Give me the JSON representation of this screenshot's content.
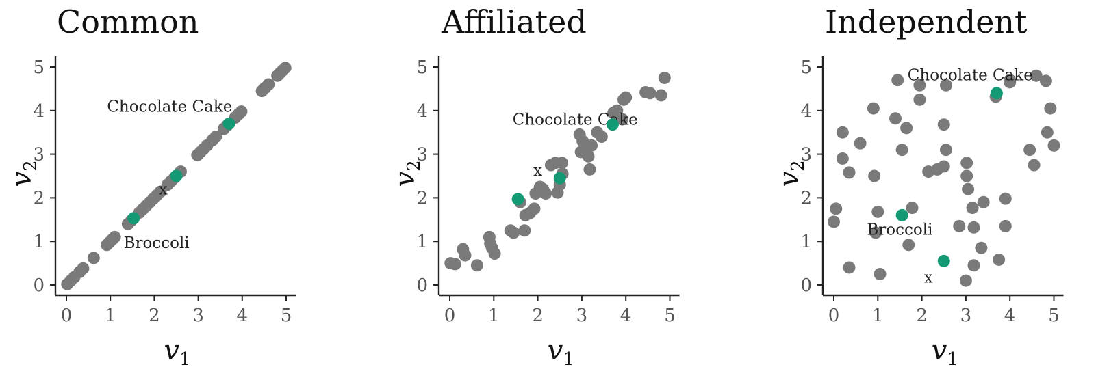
{
  "chart_data": [
    {
      "type": "scatter",
      "title": "Common",
      "xlabel": "v",
      "xlabel_sub": "1",
      "ylabel": "v",
      "ylabel_sub": "2",
      "xlim": [
        0,
        5
      ],
      "ylim": [
        0,
        5
      ],
      "xticks": [
        "0",
        "1",
        "2",
        "3",
        "4",
        "5"
      ],
      "yticks": [
        "0",
        "1",
        "2",
        "3",
        "4",
        "5"
      ],
      "grid": false,
      "colors": {
        "points": "#7a7a7a",
        "highlight": "#139a74"
      },
      "points": [
        [
          0.02,
          0.02
        ],
        [
          0.1,
          0.1
        ],
        [
          0.18,
          0.18
        ],
        [
          0.3,
          0.3
        ],
        [
          0.38,
          0.38
        ],
        [
          0.62,
          0.62
        ],
        [
          0.92,
          0.92
        ],
        [
          0.98,
          0.98
        ],
        [
          1.05,
          1.05
        ],
        [
          1.1,
          1.1
        ],
        [
          1.4,
          1.4
        ],
        [
          1.48,
          1.48
        ],
        [
          1.66,
          1.66
        ],
        [
          1.74,
          1.74
        ],
        [
          1.82,
          1.82
        ],
        [
          1.9,
          1.9
        ],
        [
          1.98,
          1.98
        ],
        [
          2.06,
          2.06
        ],
        [
          2.14,
          2.14
        ],
        [
          2.3,
          2.3
        ],
        [
          2.38,
          2.38
        ],
        [
          2.46,
          2.46
        ],
        [
          2.6,
          2.6
        ],
        [
          2.98,
          2.98
        ],
        [
          3.05,
          3.05
        ],
        [
          3.12,
          3.12
        ],
        [
          3.2,
          3.2
        ],
        [
          3.32,
          3.32
        ],
        [
          3.4,
          3.4
        ],
        [
          3.58,
          3.58
        ],
        [
          3.66,
          3.66
        ],
        [
          3.84,
          3.84
        ],
        [
          3.92,
          3.92
        ],
        [
          3.98,
          3.98
        ],
        [
          4.45,
          4.45
        ],
        [
          4.52,
          4.52
        ],
        [
          4.6,
          4.6
        ],
        [
          4.8,
          4.8
        ],
        [
          4.86,
          4.86
        ],
        [
          4.92,
          4.92
        ],
        [
          4.98,
          4.98
        ]
      ],
      "highlight": [
        [
          1.53,
          1.53
        ],
        [
          2.5,
          2.5
        ],
        [
          3.7,
          3.7
        ]
      ],
      "annotations": [
        {
          "text": "Chocolate Cake",
          "x": 2.35,
          "y": 4.1
        },
        {
          "text": "Broccoli",
          "x": 2.05,
          "y": 0.97
        },
        {
          "text": "x",
          "x": 2.2,
          "y": 2.2
        }
      ]
    },
    {
      "type": "scatter",
      "title": "Affiliated",
      "xlabel": "v",
      "xlabel_sub": "1",
      "ylabel": "v",
      "ylabel_sub": "2",
      "xlim": [
        0,
        5
      ],
      "ylim": [
        0,
        5
      ],
      "xticks": [
        "0",
        "1",
        "2",
        "3",
        "4",
        "5"
      ],
      "yticks": [
        "0",
        "1",
        "2",
        "3",
        "4",
        "5"
      ],
      "grid": false,
      "colors": {
        "points": "#7a7a7a",
        "highlight": "#139a74"
      },
      "points": [
        [
          0.02,
          0.5
        ],
        [
          0.12,
          0.48
        ],
        [
          0.3,
          0.82
        ],
        [
          0.35,
          0.68
        ],
        [
          0.62,
          0.45
        ],
        [
          0.9,
          1.1
        ],
        [
          0.92,
          0.95
        ],
        [
          0.96,
          0.85
        ],
        [
          1.02,
          0.72
        ],
        [
          1.38,
          1.25
        ],
        [
          1.45,
          1.2
        ],
        [
          1.6,
          1.9
        ],
        [
          1.7,
          1.25
        ],
        [
          1.72,
          1.6
        ],
        [
          1.82,
          1.65
        ],
        [
          1.92,
          1.75
        ],
        [
          1.95,
          2.1
        ],
        [
          2.05,
          2.25
        ],
        [
          2.12,
          2.2
        ],
        [
          2.18,
          2.1
        ],
        [
          2.3,
          2.75
        ],
        [
          2.4,
          2.8
        ],
        [
          2.45,
          2.12
        ],
        [
          2.5,
          2.3
        ],
        [
          2.55,
          2.8
        ],
        [
          2.56,
          2.55
        ],
        [
          2.95,
          3.45
        ],
        [
          2.98,
          3.05
        ],
        [
          3.02,
          3.3
        ],
        [
          3.1,
          3.1
        ],
        [
          3.15,
          2.95
        ],
        [
          3.18,
          2.65
        ],
        [
          3.22,
          3.2
        ],
        [
          3.35,
          3.5
        ],
        [
          3.45,
          3.4
        ],
        [
          3.72,
          3.95
        ],
        [
          3.8,
          4.0
        ],
        [
          3.92,
          3.8
        ],
        [
          3.95,
          4.25
        ],
        [
          4.0,
          4.3
        ],
        [
          4.45,
          4.42
        ],
        [
          4.55,
          4.4
        ],
        [
          4.8,
          4.35
        ],
        [
          4.88,
          4.75
        ]
      ],
      "highlight": [
        [
          1.55,
          1.97
        ],
        [
          2.5,
          2.45
        ],
        [
          3.7,
          3.68
        ]
      ],
      "annotations": [
        {
          "text": "Chocolate Cake",
          "x": 2.85,
          "y": 3.8
        },
        {
          "text": "x",
          "x": 2.0,
          "y": 2.63
        }
      ]
    },
    {
      "type": "scatter",
      "title": "Independent",
      "xlabel": "v",
      "xlabel_sub": "1",
      "ylabel": "v",
      "ylabel_sub": "2",
      "xlim": [
        0,
        5
      ],
      "ylim": [
        0,
        5
      ],
      "xticks": [
        "0",
        "1",
        "2",
        "3",
        "4",
        "5"
      ],
      "yticks": [
        "0",
        "1",
        "2",
        "3",
        "4",
        "5"
      ],
      "grid": false,
      "colors": {
        "points": "#7a7a7a",
        "highlight": "#139a74"
      },
      "points": [
        [
          0.0,
          1.45
        ],
        [
          0.05,
          1.75
        ],
        [
          0.2,
          3.5
        ],
        [
          0.2,
          2.9
        ],
        [
          0.35,
          2.58
        ],
        [
          0.35,
          0.4
        ],
        [
          0.6,
          3.25
        ],
        [
          0.9,
          4.05
        ],
        [
          0.92,
          2.5
        ],
        [
          0.95,
          1.2
        ],
        [
          1.0,
          1.68
        ],
        [
          1.05,
          0.25
        ],
        [
          1.4,
          3.82
        ],
        [
          1.45,
          4.7
        ],
        [
          1.55,
          3.1
        ],
        [
          1.65,
          3.6
        ],
        [
          1.7,
          0.92
        ],
        [
          1.78,
          1.77
        ],
        [
          1.95,
          4.58
        ],
        [
          1.95,
          4.25
        ],
        [
          2.15,
          2.6
        ],
        [
          2.35,
          2.65
        ],
        [
          2.5,
          2.72
        ],
        [
          2.5,
          3.68
        ],
        [
          2.55,
          3.1
        ],
        [
          2.55,
          4.58
        ],
        [
          2.85,
          1.35
        ],
        [
          3.0,
          0.1
        ],
        [
          3.02,
          2.8
        ],
        [
          3.02,
          2.5
        ],
        [
          3.05,
          2.2
        ],
        [
          3.15,
          1.77
        ],
        [
          3.18,
          1.32
        ],
        [
          3.18,
          0.45
        ],
        [
          3.35,
          0.85
        ],
        [
          3.4,
          1.9
        ],
        [
          3.68,
          4.32
        ],
        [
          3.75,
          0.58
        ],
        [
          3.9,
          1.98
        ],
        [
          3.9,
          1.35
        ],
        [
          4.0,
          4.7
        ],
        [
          4.0,
          4.65
        ],
        [
          4.45,
          3.1
        ],
        [
          4.55,
          2.75
        ],
        [
          4.6,
          4.8
        ],
        [
          4.82,
          4.68
        ],
        [
          4.85,
          3.5
        ],
        [
          4.92,
          4.05
        ],
        [
          5.0,
          3.2
        ]
      ],
      "highlight": [
        [
          1.55,
          1.6
        ],
        [
          2.5,
          0.55
        ],
        [
          3.7,
          4.4
        ]
      ],
      "annotations": [
        {
          "text": "Chocolate Cake",
          "x": 3.1,
          "y": 4.82
        },
        {
          "text": "Broccoli",
          "x": 1.5,
          "y": 1.28
        },
        {
          "text": "x",
          "x": 2.15,
          "y": 0.18
        }
      ]
    }
  ]
}
